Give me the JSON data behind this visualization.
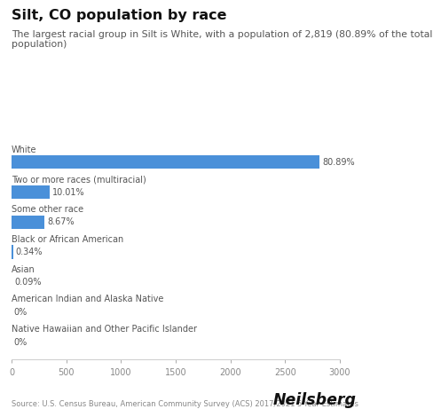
{
  "title": "Silt, CO population by race",
  "subtitle": "The largest racial group in Silt is White, with a population of 2,819 (80.89% of the total\npopulation)",
  "categories": [
    "White",
    "Two or more races (multiracial)",
    "Some other race",
    "Black or African American",
    "Asian",
    "American Indian and Alaska Native",
    "Native Hawaiian and Other Pacific Islander"
  ],
  "values": [
    2819,
    349,
    302,
    12,
    3,
    0,
    0
  ],
  "labels": [
    "80.89%",
    "10.01%",
    "8.67%",
    "0.34%",
    "0.09%",
    "0%",
    "0%"
  ],
  "bar_color": "#4A90D9",
  "xlim": [
    0,
    3000
  ],
  "xticks": [
    0,
    500,
    1000,
    1500,
    2000,
    2500,
    3000
  ],
  "source": "Source: U.S. Census Bureau, American Community Survey (ACS) 2017/2021 5-Year Estimates",
  "brand": "Neilsberg",
  "background_color": "#ffffff",
  "title_fontsize": 11.5,
  "subtitle_fontsize": 7.8,
  "label_fontsize": 7.0,
  "category_fontsize": 7.0,
  "tick_fontsize": 7.0,
  "source_fontsize": 6.0,
  "brand_fontsize": 12.5,
  "bar_color_zero": "#4A90D9",
  "text_color_dark": "#111111",
  "text_color_mid": "#555555",
  "text_color_light": "#888888"
}
